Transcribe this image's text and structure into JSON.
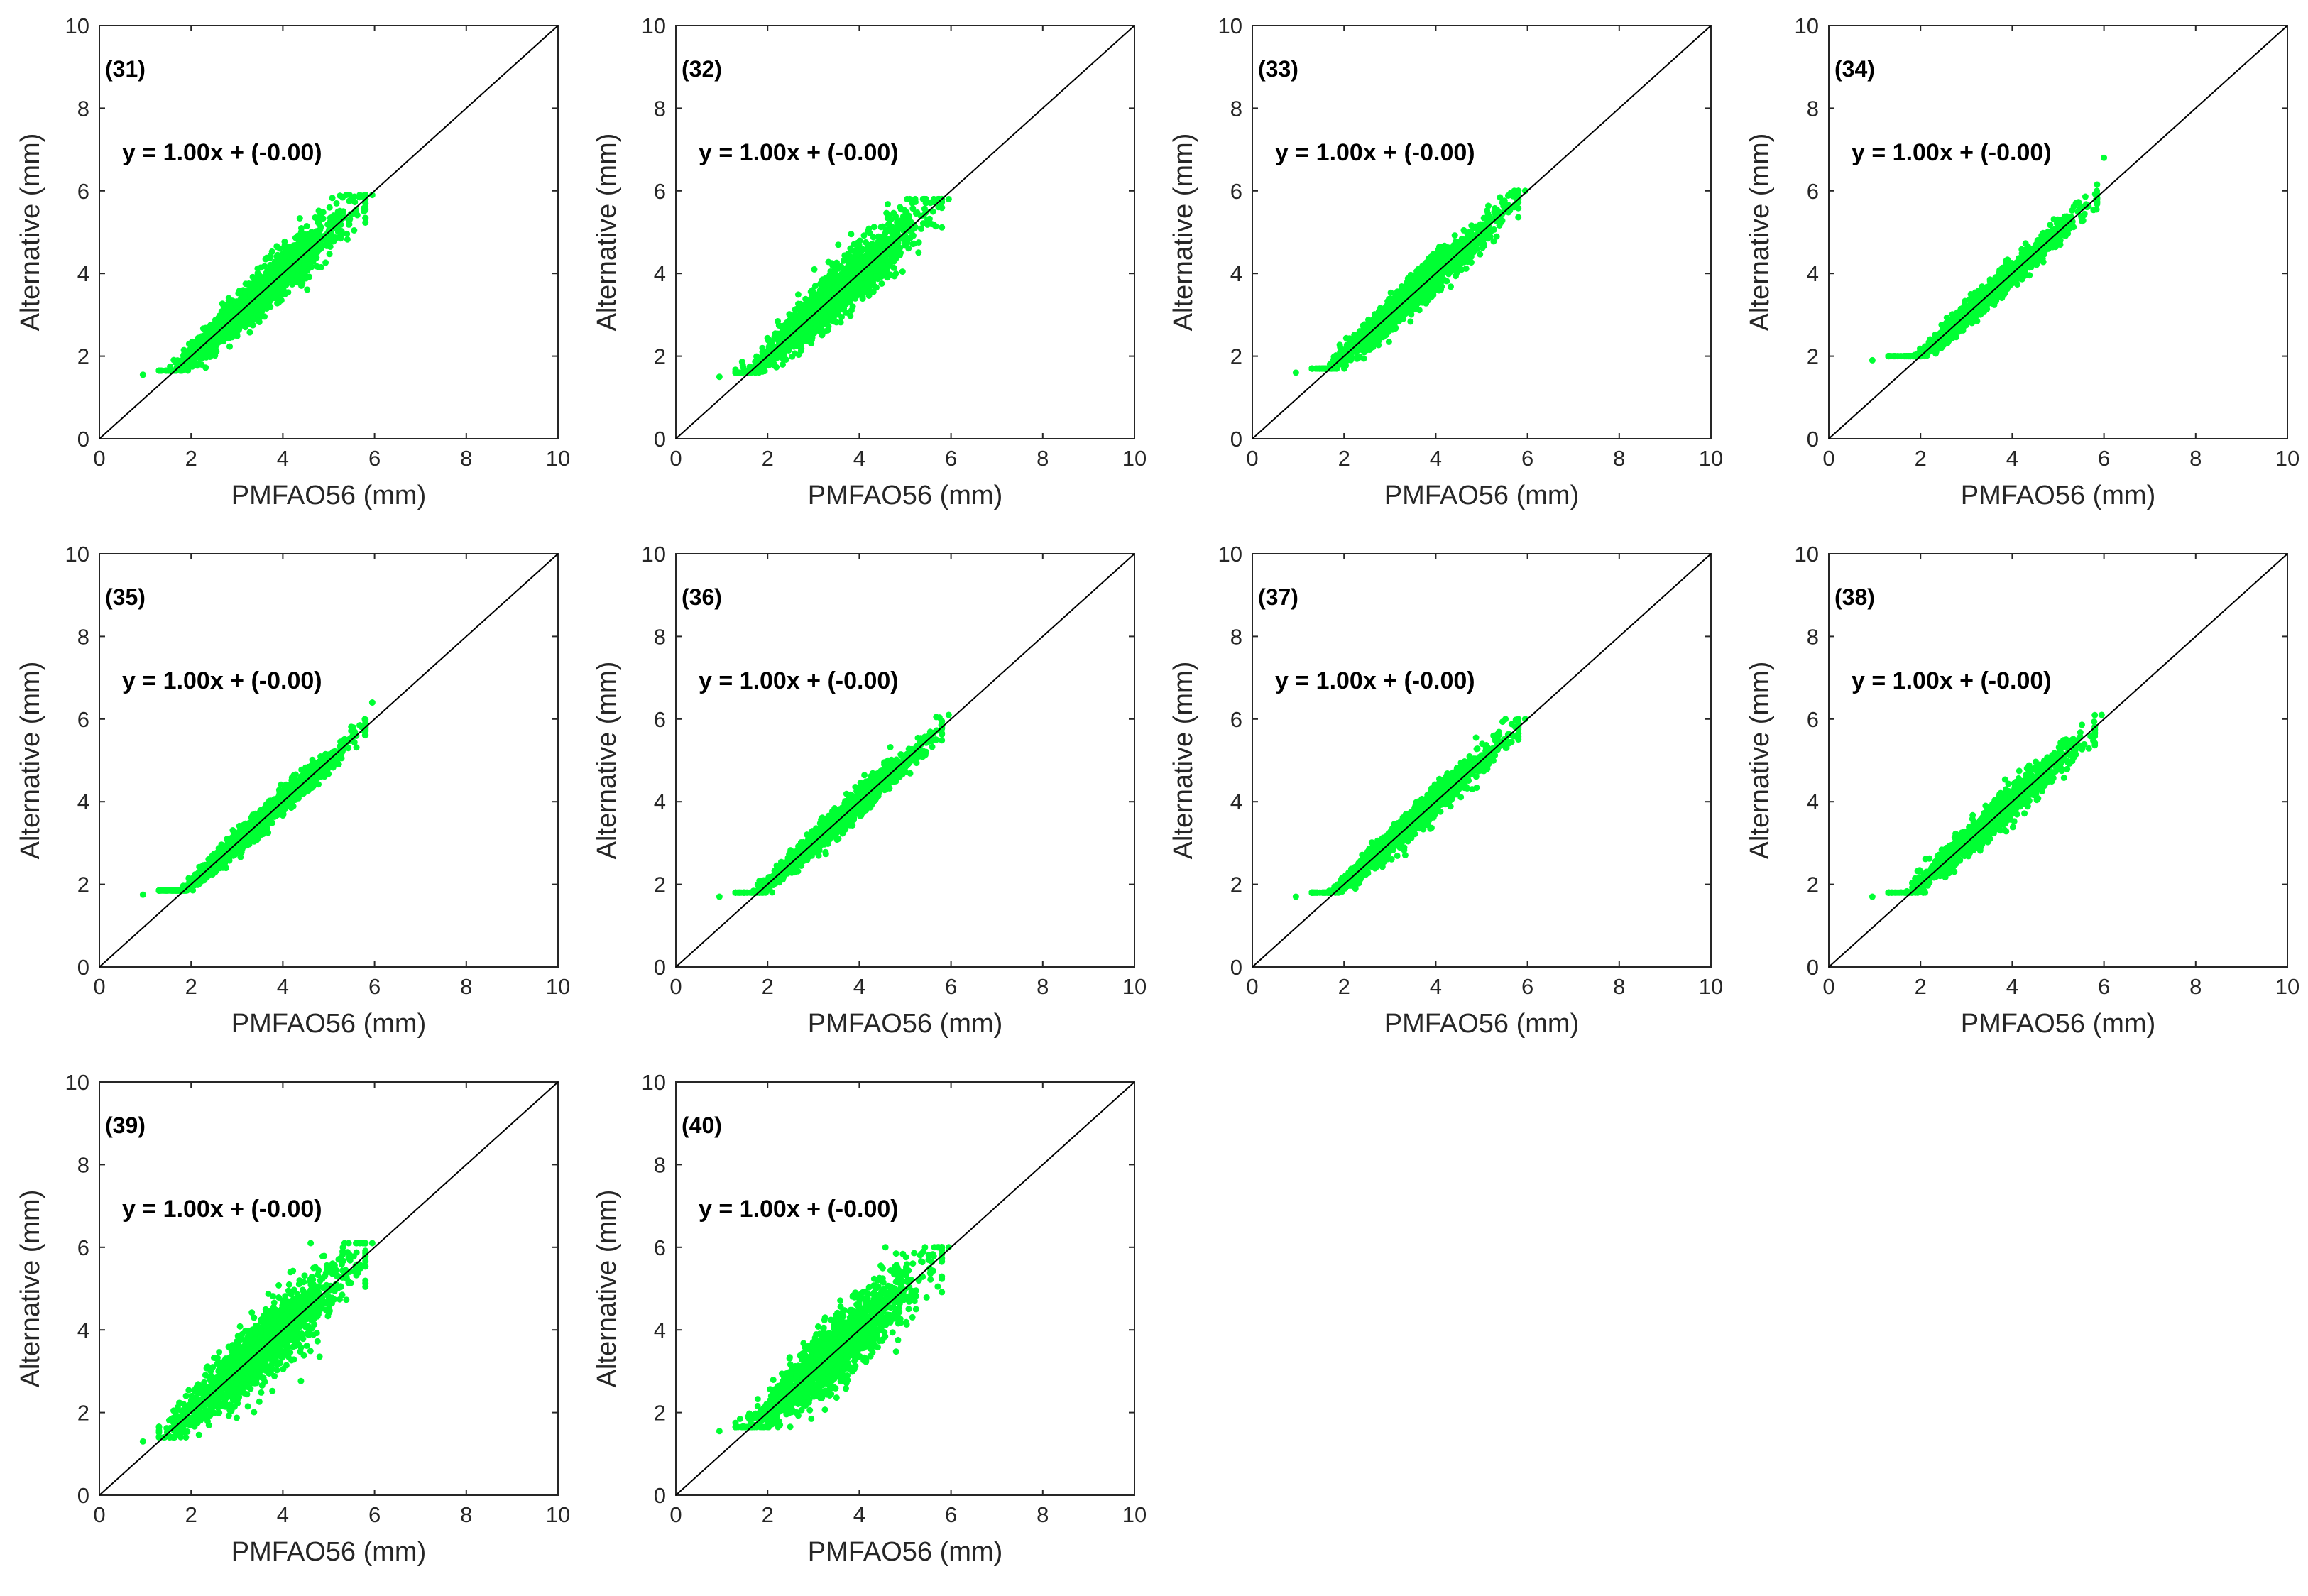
{
  "colors": {
    "points": "#00ff33",
    "axes": "#262626",
    "line": "#000000"
  },
  "shared": {
    "xlabel": "PMFAO56 (mm)",
    "ylabel": "Alternative (mm)",
    "xlim": [
      0,
      10
    ],
    "ylim": [
      0,
      10
    ],
    "ticks": [
      0,
      2,
      4,
      6,
      8,
      10
    ],
    "equation": "y = 1.00x + (-0.00)"
  },
  "chart_data": [
    {
      "id": "(31)",
      "type": "scatter",
      "title": "(31)",
      "xlabel": "PMFAO56 (mm)",
      "ylabel": "Alternative (mm)",
      "xlim": [
        0,
        10
      ],
      "ylim": [
        0,
        10
      ],
      "annotation": "y = 1.00x + (-0.00)",
      "fit": {
        "slope": 1.0,
        "intercept": -0.0
      },
      "x_range": [
        0.95,
        5.95
      ],
      "y_range": [
        1.55,
        5.9
      ],
      "spread": 0.28
    },
    {
      "id": "(32)",
      "type": "scatter",
      "title": "(32)",
      "xlabel": "PMFAO56 (mm)",
      "ylabel": "Alternative (mm)",
      "xlim": [
        0,
        10
      ],
      "ylim": [
        0,
        10
      ],
      "annotation": "y = 1.00x + (-0.00)",
      "fit": {
        "slope": 1.0,
        "intercept": -0.0
      },
      "x_range": [
        0.95,
        5.95
      ],
      "y_range": [
        1.5,
        5.8
      ],
      "spread": 0.33
    },
    {
      "id": "(33)",
      "type": "scatter",
      "title": "(33)",
      "xlabel": "PMFAO56 (mm)",
      "ylabel": "Alternative (mm)",
      "xlim": [
        0,
        10
      ],
      "ylim": [
        0,
        10
      ],
      "annotation": "y = 1.00x + (-0.00)",
      "fit": {
        "slope": 1.0,
        "intercept": -0.0
      },
      "x_range": [
        0.95,
        5.95
      ],
      "y_range": [
        1.6,
        6.0
      ],
      "spread": 0.22
    },
    {
      "id": "(34)",
      "type": "scatter",
      "title": "(34)",
      "xlabel": "PMFAO56 (mm)",
      "ylabel": "Alternative (mm)",
      "xlim": [
        0,
        10
      ],
      "ylim": [
        0,
        10
      ],
      "annotation": "y = 1.00x + (-0.00)",
      "fit": {
        "slope": 1.0,
        "intercept": -0.0
      },
      "x_range": [
        0.95,
        6.0
      ],
      "y_range": [
        1.9,
        6.8
      ],
      "spread": 0.15
    },
    {
      "id": "(35)",
      "type": "scatter",
      "title": "(35)",
      "xlabel": "PMFAO56 (mm)",
      "ylabel": "Alternative (mm)",
      "xlim": [
        0,
        10
      ],
      "ylim": [
        0,
        10
      ],
      "annotation": "y = 1.00x + (-0.00)",
      "fit": {
        "slope": 1.0,
        "intercept": -0.0
      },
      "x_range": [
        0.95,
        5.95
      ],
      "y_range": [
        1.75,
        6.4
      ],
      "spread": 0.15
    },
    {
      "id": "(36)",
      "type": "scatter",
      "title": "(36)",
      "xlabel": "PMFAO56 (mm)",
      "ylabel": "Alternative (mm)",
      "xlim": [
        0,
        10
      ],
      "ylim": [
        0,
        10
      ],
      "annotation": "y = 1.00x + (-0.00)",
      "fit": {
        "slope": 1.0,
        "intercept": -0.0
      },
      "x_range": [
        0.95,
        5.95
      ],
      "y_range": [
        1.7,
        6.1
      ],
      "spread": 0.16
    },
    {
      "id": "(37)",
      "type": "scatter",
      "title": "(37)",
      "xlabel": "PMFAO56 (mm)",
      "ylabel": "Alternative (mm)",
      "xlim": [
        0,
        10
      ],
      "ylim": [
        0,
        10
      ],
      "annotation": "y = 1.00x + (-0.00)",
      "fit": {
        "slope": 1.0,
        "intercept": -0.0
      },
      "x_range": [
        0.95,
        5.95
      ],
      "y_range": [
        1.7,
        6.0
      ],
      "spread": 0.18
    },
    {
      "id": "(38)",
      "type": "scatter",
      "title": "(38)",
      "xlabel": "PMFAO56 (mm)",
      "ylabel": "Alternative (mm)",
      "xlim": [
        0,
        10
      ],
      "ylim": [
        0,
        10
      ],
      "annotation": "y = 1.00x + (-0.00)",
      "fit": {
        "slope": 1.0,
        "intercept": -0.0
      },
      "x_range": [
        0.95,
        5.95
      ],
      "y_range": [
        1.7,
        6.1
      ],
      "spread": 0.2
    },
    {
      "id": "(39)",
      "type": "scatter",
      "title": "(39)",
      "xlabel": "PMFAO56 (mm)",
      "ylabel": "Alternative (mm)",
      "xlim": [
        0,
        10
      ],
      "ylim": [
        0,
        10
      ],
      "annotation": "y = 1.00x + (-0.00)",
      "fit": {
        "slope": 1.0,
        "intercept": -0.0
      },
      "x_range": [
        0.95,
        5.95
      ],
      "y_range": [
        1.3,
        6.1
      ],
      "spread": 0.42
    },
    {
      "id": "(40)",
      "type": "scatter",
      "title": "(40)",
      "xlabel": "PMFAO56 (mm)",
      "ylabel": "Alternative (mm)",
      "xlim": [
        0,
        10
      ],
      "ylim": [
        0,
        10
      ],
      "annotation": "y = 1.00x + (-0.00)",
      "fit": {
        "slope": 1.0,
        "intercept": -0.0
      },
      "x_range": [
        0.95,
        5.95
      ],
      "y_range": [
        1.55,
        6.0
      ],
      "spread": 0.42
    }
  ]
}
